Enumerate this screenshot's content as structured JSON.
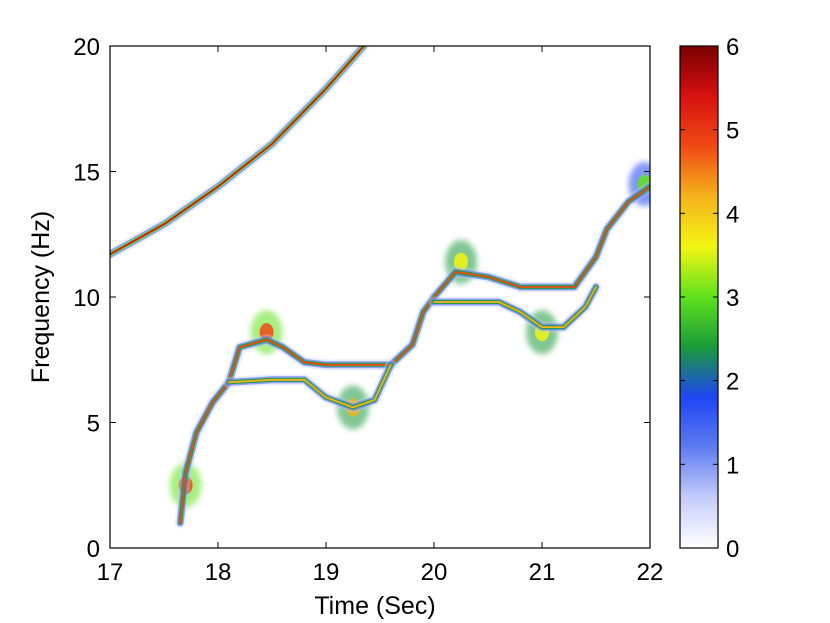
{
  "chart_data": {
    "type": "heatmap",
    "title": "",
    "xlabel": "Time (Sec)",
    "ylabel": "Frequency (Hz)",
    "xlim": [
      17,
      22
    ],
    "ylim": [
      0,
      20
    ],
    "x_ticks": [
      "17",
      "18",
      "19",
      "20",
      "21",
      "22"
    ],
    "y_ticks": [
      "0",
      "5",
      "10",
      "15",
      "20"
    ],
    "colorbar": {
      "range": [
        0,
        6
      ],
      "ticks": [
        "0",
        "1",
        "2",
        "3",
        "4",
        "5",
        "6"
      ],
      "colormap": "jet-like, white at 0 through blue, green, yellow, red to dark red at 6"
    },
    "ridges": [
      {
        "points": [
          [
            17.0,
            11.7
          ],
          [
            17.5,
            12.9
          ],
          [
            18.0,
            14.4
          ],
          [
            18.5,
            16.1
          ],
          [
            19.0,
            18.3
          ],
          [
            19.35,
            20.0
          ]
        ],
        "peak": 5.5
      },
      {
        "points": [
          [
            17.65,
            1.0
          ],
          [
            17.7,
            3.0
          ],
          [
            17.8,
            4.6
          ],
          [
            17.95,
            5.8
          ],
          [
            18.1,
            6.6
          ],
          [
            18.2,
            8.0
          ],
          [
            18.45,
            8.3
          ],
          [
            18.6,
            8.0
          ],
          [
            18.8,
            7.4
          ],
          [
            19.0,
            7.3
          ],
          [
            19.3,
            7.3
          ],
          [
            19.6,
            7.3
          ],
          [
            19.8,
            8.1
          ],
          [
            19.9,
            9.4
          ],
          [
            20.0,
            10.0
          ],
          [
            20.2,
            11.0
          ],
          [
            20.5,
            10.8
          ],
          [
            20.8,
            10.4
          ],
          [
            21.0,
            10.4
          ],
          [
            21.3,
            10.4
          ],
          [
            21.5,
            11.6
          ],
          [
            21.6,
            12.7
          ],
          [
            21.8,
            13.8
          ],
          [
            22.0,
            14.4
          ]
        ],
        "peak": 4.5
      },
      {
        "points": [
          [
            18.1,
            6.6
          ],
          [
            18.5,
            6.7
          ],
          [
            18.8,
            6.7
          ],
          [
            19.0,
            6.0
          ],
          [
            19.25,
            5.6
          ],
          [
            19.45,
            5.9
          ],
          [
            19.6,
            7.3
          ]
        ],
        "peak": 4.0
      },
      {
        "points": [
          [
            20.0,
            9.8
          ],
          [
            20.3,
            9.8
          ],
          [
            20.6,
            9.8
          ],
          [
            20.8,
            9.4
          ],
          [
            21.0,
            8.8
          ],
          [
            21.2,
            8.8
          ],
          [
            21.4,
            9.6
          ],
          [
            21.5,
            10.4
          ]
        ],
        "peak": 4.0
      }
    ],
    "hotspots": [
      {
        "x": 17.7,
        "y": 2.5,
        "value": 5.0
      },
      {
        "x": 18.45,
        "y": 8.6,
        "value": 4.5
      },
      {
        "x": 19.25,
        "y": 5.6,
        "value": 4.2
      },
      {
        "x": 20.25,
        "y": 11.4,
        "value": 3.8
      },
      {
        "x": 21.0,
        "y": 8.6,
        "value": 3.5
      },
      {
        "x": 21.95,
        "y": 14.5,
        "value": 3.2
      }
    ]
  },
  "colors": {
    "axis": "#000000",
    "background": "#ffffff",
    "scale": [
      "#ffffff",
      "#c4cdfb",
      "#5f7cf0",
      "#1e45f2",
      "#1a9a3a",
      "#5fe21c",
      "#f3f512",
      "#f5b21c",
      "#f04a14",
      "#d81010",
      "#7a0000"
    ]
  }
}
